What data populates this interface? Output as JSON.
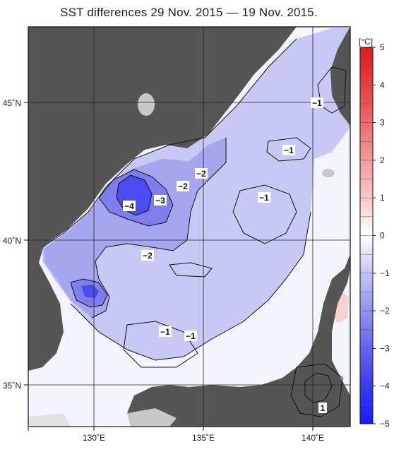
{
  "title": "SST differences 29 Nov. 2015 — 19 Nov. 2015.",
  "colorbar": {
    "unit": "[°C]",
    "ticks": [
      "5",
      "4",
      "3",
      "2",
      "1",
      "0",
      "−1",
      "−2",
      "−3",
      "−4",
      "−5"
    ],
    "min": -5,
    "max": 5,
    "step": 0.5,
    "stops": [
      {
        "v": -5.0,
        "color": "#1a1aff"
      },
      {
        "v": -4.0,
        "color": "#3a3af5"
      },
      {
        "v": -3.0,
        "color": "#6464f2"
      },
      {
        "v": -2.0,
        "color": "#9292f2"
      },
      {
        "v": -1.0,
        "color": "#c4c4f6"
      },
      {
        "v": 0.0,
        "color": "#ffffff"
      },
      {
        "v": 1.0,
        "color": "#f8c8c8"
      },
      {
        "v": 2.0,
        "color": "#f49a9a"
      },
      {
        "v": 3.0,
        "color": "#ee6a6a"
      },
      {
        "v": 4.0,
        "color": "#e83e3e"
      },
      {
        "v": 5.0,
        "color": "#e01c1c"
      }
    ]
  },
  "axes": {
    "lat_labels": [
      "45˚N",
      "40˚N",
      "35˚N"
    ],
    "lon_labels": [
      "130˚E",
      "135˚E",
      "140˚E"
    ]
  },
  "contour_labels": [
    {
      "id": "label-minus-4",
      "text": "−4"
    },
    {
      "id": "label-minus-3",
      "text": "−3"
    },
    {
      "id": "label-minus-2-a",
      "text": "−2"
    },
    {
      "id": "label-minus-2-b",
      "text": "−2"
    },
    {
      "id": "label-minus-2-c",
      "text": "−2"
    },
    {
      "id": "label-minus-1-a",
      "text": "−1"
    },
    {
      "id": "label-minus-1-b",
      "text": "−1"
    },
    {
      "id": "label-minus-1-c",
      "text": "−1"
    },
    {
      "id": "label-minus-1-d",
      "text": "−1"
    },
    {
      "id": "label-minus-1-e",
      "text": "−1"
    },
    {
      "id": "label-plus-1",
      "text": "1"
    }
  ],
  "colors": {
    "land": "#555555",
    "island_light": "#c8c8c8",
    "grid": "#222222"
  }
}
